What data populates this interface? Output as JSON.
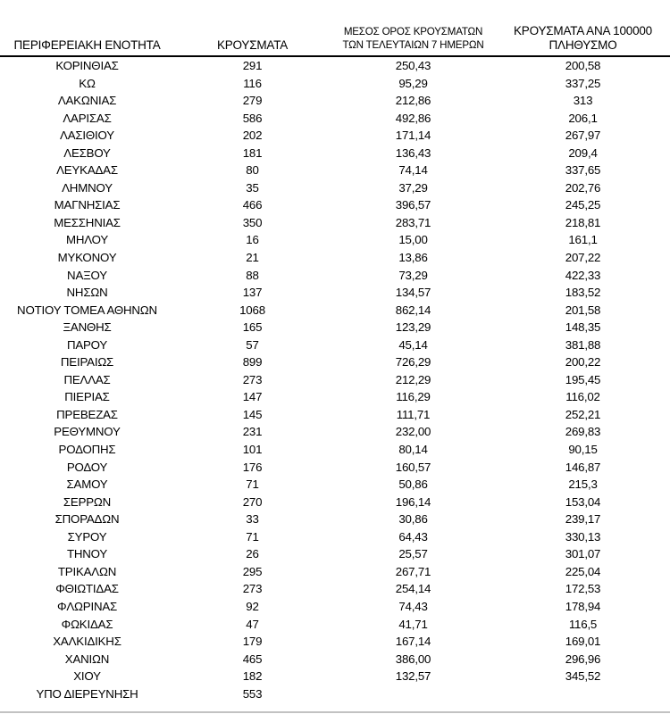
{
  "colors": {
    "text": "#000000",
    "header_rule": "#000000",
    "bottom_rule": "#c2c2c2"
  },
  "table": {
    "headers": {
      "region": "ΠΕΡΙΦΕΡΕΙΑΚΗ ΕΝΟΤΗΤΑ",
      "cases": "ΚΡΟΥΣΜΑΤΑ",
      "avg7_line1": "ΜΕΣΟΣ ΟΡΟΣ ΚΡΟΥΣΜΑΤΩΝ",
      "avg7_line2": "ΤΩΝ ΤΕΛΕΥΤΑΙΩΝ 7 ΗΜΕΡΩΝ",
      "per100k_line1": "ΚΡΟΥΣΜΑΤΑ ΑΝΑ 100000",
      "per100k_line2": "ΠΛΗΘΥΣΜΟ"
    },
    "rows": [
      {
        "region": "ΚΟΡΙΝΘΙΑΣ",
        "cases": "291",
        "avg7": "250,43",
        "per100k": "200,58"
      },
      {
        "region": "ΚΩ",
        "cases": "116",
        "avg7": "95,29",
        "per100k": "337,25"
      },
      {
        "region": "ΛΑΚΩΝΙΑΣ",
        "cases": "279",
        "avg7": "212,86",
        "per100k": "313"
      },
      {
        "region": "ΛΑΡΙΣΑΣ",
        "cases": "586",
        "avg7": "492,86",
        "per100k": "206,1"
      },
      {
        "region": "ΛΑΣΙΘΙΟΥ",
        "cases": "202",
        "avg7": "171,14",
        "per100k": "267,97"
      },
      {
        "region": "ΛΕΣΒΟΥ",
        "cases": "181",
        "avg7": "136,43",
        "per100k": "209,4"
      },
      {
        "region": "ΛΕΥΚΑΔΑΣ",
        "cases": "80",
        "avg7": "74,14",
        "per100k": "337,65"
      },
      {
        "region": "ΛΗΜΝΟΥ",
        "cases": "35",
        "avg7": "37,29",
        "per100k": "202,76"
      },
      {
        "region": "ΜΑΓΝΗΣΙΑΣ",
        "cases": "466",
        "avg7": "396,57",
        "per100k": "245,25"
      },
      {
        "region": "ΜΕΣΣΗΝΙΑΣ",
        "cases": "350",
        "avg7": "283,71",
        "per100k": "218,81"
      },
      {
        "region": "ΜΗΛΟΥ",
        "cases": "16",
        "avg7": "15,00",
        "per100k": "161,1"
      },
      {
        "region": "ΜΥΚΟΝΟΥ",
        "cases": "21",
        "avg7": "13,86",
        "per100k": "207,22"
      },
      {
        "region": "ΝΑΞΟΥ",
        "cases": "88",
        "avg7": "73,29",
        "per100k": "422,33"
      },
      {
        "region": "ΝΗΣΩΝ",
        "cases": "137",
        "avg7": "134,57",
        "per100k": "183,52"
      },
      {
        "region": "ΝΟΤΙΟΥ ΤΟΜΕΑ ΑΘΗΝΩΝ",
        "cases": "1068",
        "avg7": "862,14",
        "per100k": "201,58"
      },
      {
        "region": "ΞΑΝΘΗΣ",
        "cases": "165",
        "avg7": "123,29",
        "per100k": "148,35"
      },
      {
        "region": "ΠΑΡΟΥ",
        "cases": "57",
        "avg7": "45,14",
        "per100k": "381,88"
      },
      {
        "region": "ΠΕΙΡΑΙΩΣ",
        "cases": "899",
        "avg7": "726,29",
        "per100k": "200,22"
      },
      {
        "region": "ΠΕΛΛΑΣ",
        "cases": "273",
        "avg7": "212,29",
        "per100k": "195,45"
      },
      {
        "region": "ΠΙΕΡΙΑΣ",
        "cases": "147",
        "avg7": "116,29",
        "per100k": "116,02"
      },
      {
        "region": "ΠΡΕΒΕΖΑΣ",
        "cases": "145",
        "avg7": "111,71",
        "per100k": "252,21"
      },
      {
        "region": "ΡΕΘΥΜΝΟΥ",
        "cases": "231",
        "avg7": "232,00",
        "per100k": "269,83"
      },
      {
        "region": "ΡΟΔΟΠΗΣ",
        "cases": "101",
        "avg7": "80,14",
        "per100k": "90,15"
      },
      {
        "region": "ΡΟΔΟΥ",
        "cases": "176",
        "avg7": "160,57",
        "per100k": "146,87"
      },
      {
        "region": "ΣΑΜΟΥ",
        "cases": "71",
        "avg7": "50,86",
        "per100k": "215,3"
      },
      {
        "region": "ΣΕΡΡΩΝ",
        "cases": "270",
        "avg7": "196,14",
        "per100k": "153,04"
      },
      {
        "region": "ΣΠΟΡΑΔΩΝ",
        "cases": "33",
        "avg7": "30,86",
        "per100k": "239,17"
      },
      {
        "region": "ΣΥΡΟΥ",
        "cases": "71",
        "avg7": "64,43",
        "per100k": "330,13"
      },
      {
        "region": "ΤΗΝΟΥ",
        "cases": "26",
        "avg7": "25,57",
        "per100k": "301,07"
      },
      {
        "region": "ΤΡΙΚΑΛΩΝ",
        "cases": "295",
        "avg7": "267,71",
        "per100k": "225,04"
      },
      {
        "region": "ΦΘΙΩΤΙΔΑΣ",
        "cases": "273",
        "avg7": "254,14",
        "per100k": "172,53"
      },
      {
        "region": "ΦΛΩΡΙΝΑΣ",
        "cases": "92",
        "avg7": "74,43",
        "per100k": "178,94"
      },
      {
        "region": "ΦΩΚΙΔΑΣ",
        "cases": "47",
        "avg7": "41,71",
        "per100k": "116,5"
      },
      {
        "region": "ΧΑΛΚΙΔΙΚΗΣ",
        "cases": "179",
        "avg7": "167,14",
        "per100k": "169,01"
      },
      {
        "region": "ΧΑΝΙΩΝ",
        "cases": "465",
        "avg7": "386,00",
        "per100k": "296,96"
      },
      {
        "region": "ΧΙΟΥ",
        "cases": "182",
        "avg7": "132,57",
        "per100k": "345,52"
      },
      {
        "region": "ΥΠΟ ΔΙΕΡΕΥΝΗΣΗ",
        "cases": "553",
        "avg7": "",
        "per100k": ""
      }
    ]
  }
}
